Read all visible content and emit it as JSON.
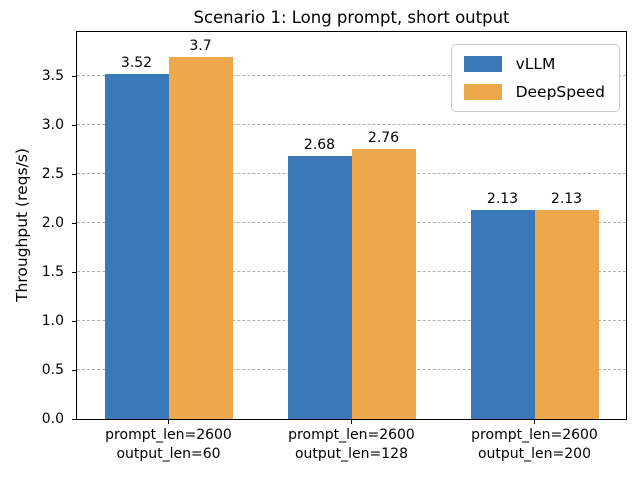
{
  "chart_data": {
    "type": "bar",
    "title": "Scenario 1: Long prompt, short output",
    "xlabel": "",
    "ylabel": "Throughput (reqs/s)",
    "categories": [
      [
        "prompt_len=2600",
        "output_len=60"
      ],
      [
        "prompt_len=2600",
        "output_len=128"
      ],
      [
        "prompt_len=2600",
        "output_len=200"
      ]
    ],
    "series": [
      {
        "name": "vLLM",
        "color": "#3b78b9",
        "values": [
          3.52,
          2.68,
          2.13
        ],
        "labels": [
          "3.52",
          "2.68",
          "2.13"
        ]
      },
      {
        "name": "DeepSpeed",
        "color": "#eca84a",
        "values": [
          3.7,
          2.76,
          2.13
        ],
        "labels": [
          "3.7",
          "2.76",
          "2.13"
        ]
      }
    ],
    "yticks": [
      "0.0",
      "0.5",
      "1.0",
      "1.5",
      "2.0",
      "2.5",
      "3.0",
      "3.5"
    ],
    "ylim": [
      0,
      3.95
    ],
    "grid": {
      "axis": "y",
      "style": "dashed",
      "color": "#b0b0b0"
    },
    "legend": {
      "position": "upper right"
    }
  }
}
